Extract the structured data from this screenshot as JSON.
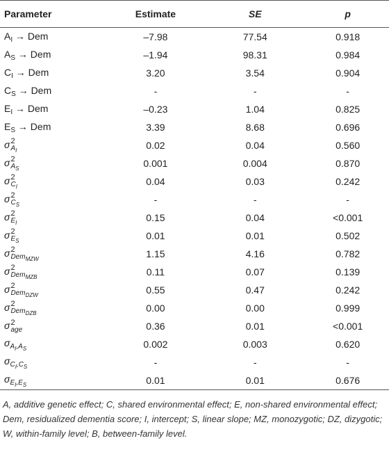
{
  "table": {
    "header": [
      "Parameter",
      "Estimate",
      "SE",
      "p"
    ],
    "header_italic": [
      false,
      false,
      true,
      true
    ],
    "rows": [
      {
        "parameter": {
          "base": "A",
          "sub": [
            {
              "t": "I"
            }
          ],
          "tail": " → Dem",
          "italic": false
        },
        "cells": [
          "–7.98",
          "77.54",
          "0.918"
        ]
      },
      {
        "parameter": {
          "base": "A",
          "sub": [
            {
              "t": "S"
            }
          ],
          "tail": " → Dem",
          "italic": false
        },
        "cells": [
          "–1.94",
          "98.31",
          "0.984"
        ]
      },
      {
        "parameter": {
          "base": "C",
          "sub": [
            {
              "t": "I"
            }
          ],
          "tail": " → Dem",
          "italic": false
        },
        "cells": [
          "3.20",
          "3.54",
          "0.904"
        ]
      },
      {
        "parameter": {
          "base": "C",
          "sub": [
            {
              "t": "S"
            }
          ],
          "tail": " → Dem",
          "italic": false
        },
        "cells": [
          "-",
          "-",
          "-"
        ]
      },
      {
        "parameter": {
          "base": "E",
          "sub": [
            {
              "t": "I"
            }
          ],
          "tail": " → Dem",
          "italic": false
        },
        "cells": [
          "–0.23",
          "1.04",
          "0.825"
        ]
      },
      {
        "parameter": {
          "base": "E",
          "sub": [
            {
              "t": "S"
            }
          ],
          "tail": " → Dem",
          "italic": false
        },
        "cells": [
          "3.39",
          "8.68",
          "0.696"
        ]
      },
      {
        "parameter": {
          "base": "σ",
          "sup": "2",
          "sub": [
            {
              "t": "A",
              "s": "I"
            }
          ],
          "italic": true
        },
        "cells": [
          "0.02",
          "0.04",
          "0.560"
        ]
      },
      {
        "parameter": {
          "base": "σ",
          "sup": "2",
          "sub": [
            {
              "t": "A",
              "s": "S"
            }
          ],
          "italic": true
        },
        "cells": [
          "0.001",
          "0.004",
          "0.870"
        ]
      },
      {
        "parameter": {
          "base": "σ",
          "sup": "2",
          "sub": [
            {
              "t": "C",
              "s": "I"
            }
          ],
          "italic": true
        },
        "cells": [
          "0.04",
          "0.03",
          "0.242"
        ]
      },
      {
        "parameter": {
          "base": "σ",
          "sup": "2",
          "sub": [
            {
              "t": "C",
              "s": "S"
            }
          ],
          "italic": true
        },
        "cells": [
          "-",
          "-",
          "-"
        ]
      },
      {
        "parameter": {
          "base": "σ",
          "sup": "2",
          "sub": [
            {
              "t": "E",
              "s": "I"
            }
          ],
          "italic": true
        },
        "cells": [
          "0.15",
          "0.04",
          "<0.001"
        ]
      },
      {
        "parameter": {
          "base": "σ",
          "sup": "2",
          "sub": [
            {
              "t": "E",
              "s": "S"
            }
          ],
          "italic": true
        },
        "cells": [
          "0.01",
          "0.01",
          "0.502"
        ]
      },
      {
        "parameter": {
          "base": "σ",
          "sup": "2",
          "sub": [
            {
              "t": "Dem",
              "s": "MZW"
            }
          ],
          "italic": true
        },
        "cells": [
          "1.15",
          "4.16",
          "0.782"
        ]
      },
      {
        "parameter": {
          "base": "σ",
          "sup": "2",
          "sub": [
            {
              "t": "Dem",
              "s": "MZB"
            }
          ],
          "italic": true
        },
        "cells": [
          "0.11",
          "0.07",
          "0.139"
        ]
      },
      {
        "parameter": {
          "base": "σ",
          "sup": "2",
          "sub": [
            {
              "t": "Dem",
              "s": "DZW"
            }
          ],
          "italic": true
        },
        "cells": [
          "0.55",
          "0.47",
          "0.242"
        ]
      },
      {
        "parameter": {
          "base": "σ",
          "sup": "2",
          "sub": [
            {
              "t": "Dem",
              "s": "DZB"
            }
          ],
          "italic": true
        },
        "cells": [
          "0.00",
          "0.00",
          "0.999"
        ]
      },
      {
        "parameter": {
          "base": "σ",
          "sup": "2",
          "sub": [
            {
              "t": "age"
            }
          ],
          "italic": true
        },
        "cells": [
          "0.36",
          "0.01",
          "<0.001"
        ]
      },
      {
        "parameter": {
          "base": "σ",
          "sub": [
            {
              "t": "A",
              "s": "I"
            },
            {
              "t": ",A",
              "s": "S"
            }
          ],
          "italic": true
        },
        "cells": [
          "0.002",
          "0.003",
          "0.620"
        ]
      },
      {
        "parameter": {
          "base": "σ",
          "sub": [
            {
              "t": "C",
              "s": "I"
            },
            {
              "t": ",C",
              "s": "S"
            }
          ],
          "italic": true
        },
        "cells": [
          "-",
          "-",
          "-"
        ]
      },
      {
        "parameter": {
          "base": "σ",
          "sub": [
            {
              "t": "E",
              "s": "I"
            },
            {
              "t": ",E",
              "s": "S"
            }
          ],
          "italic": true
        },
        "cells": [
          "0.01",
          "0.01",
          "0.676"
        ]
      }
    ],
    "footnote": "A, additive genetic effect; C, shared environmental effect; E, non-shared environmental effect; Dem, residualized dementia score; I, intercept; S, linear slope; MZ, monozygotic; DZ, dizygotic; W, within-family level; B, between-family level."
  }
}
